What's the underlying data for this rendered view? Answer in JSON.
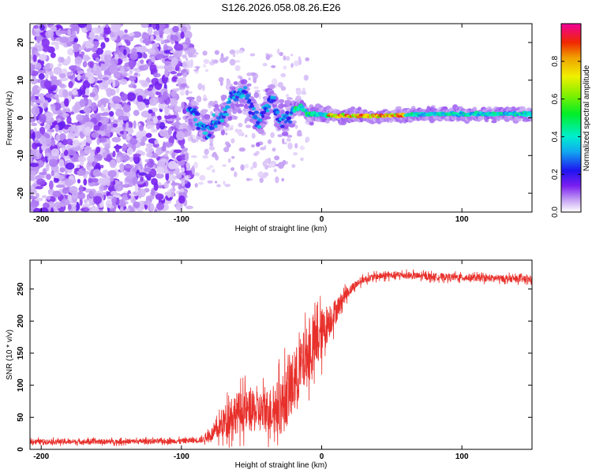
{
  "title": "S126.2026.058.08.26.E26",
  "chart_data": [
    {
      "type": "heatmap",
      "name": "spectrogram",
      "xlabel": "Height of straight line (km)",
      "ylabel": "Frequency (Hz)",
      "xlim": [
        -208,
        150
      ],
      "ylim": [
        -25,
        25
      ],
      "xticks": [
        -200,
        -100,
        0,
        100
      ],
      "yticks": [
        -20,
        -10,
        0,
        10,
        20
      ],
      "ridge": {
        "description": "dominant frequency track",
        "x": [
          -95,
          -88,
          -82,
          -78,
          -72,
          -66,
          -60,
          -55,
          -50,
          -45,
          -40,
          -35,
          -30,
          -25,
          -20,
          -15,
          -10,
          -5,
          0,
          10,
          40,
          80,
          120,
          150
        ],
        "y": [
          3,
          -1,
          -3,
          -2,
          0,
          4,
          6,
          7,
          3,
          -2,
          2,
          5,
          -1,
          1,
          2,
          3,
          1,
          1,
          1,
          0.5,
          0.5,
          1,
          1,
          1
        ]
      },
      "colorbar": {
        "label": "Normalized spectral amplitude",
        "range": [
          0,
          1
        ],
        "ticks": [
          "0.0",
          "0.2",
          "0.4",
          "0.6",
          "0.8"
        ],
        "tick_values": [
          0,
          0.2,
          0.4,
          0.6,
          0.8
        ]
      }
    },
    {
      "type": "line",
      "name": "snr",
      "xlabel": "Height of straight line (km)",
      "ylabel": "SNR (10 * v/v)",
      "xlim": [
        -208,
        150
      ],
      "ylim": [
        0,
        295
      ],
      "xticks": [
        -200,
        -100,
        0,
        100
      ],
      "yticks": [
        0,
        50,
        100,
        150,
        200,
        250
      ],
      "color": "#e8302b",
      "trend": {
        "x": [
          -208,
          -150,
          -100,
          -85,
          -75,
          -65,
          -55,
          -45,
          -35,
          -28,
          -20,
          -12,
          -5,
          0,
          5,
          10,
          15,
          20,
          25,
          30,
          40,
          55,
          70,
          100,
          150
        ],
        "y": [
          12,
          12,
          13,
          15,
          28,
          55,
          60,
          58,
          62,
          70,
          105,
          140,
          160,
          180,
          200,
          215,
          235,
          248,
          258,
          265,
          270,
          272,
          270,
          268,
          265
        ],
        "noise": [
          5,
          5,
          5,
          6,
          18,
          40,
          40,
          40,
          45,
          60,
          60,
          60,
          55,
          50,
          35,
          25,
          15,
          10,
          8,
          7,
          7,
          7,
          7,
          7,
          7
        ]
      }
    }
  ]
}
